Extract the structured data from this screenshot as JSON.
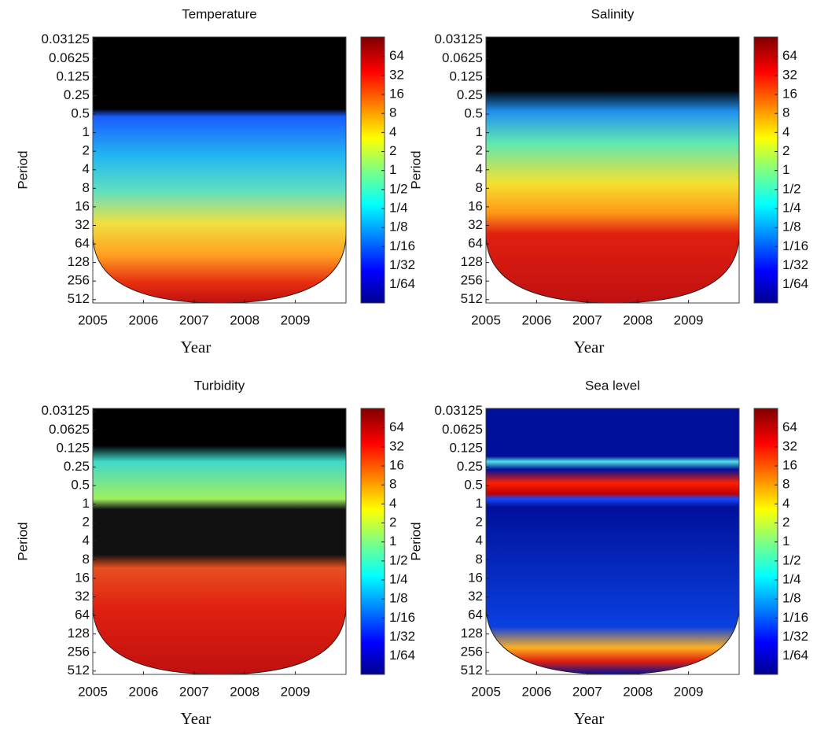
{
  "chart_data": [
    {
      "type": "heatmap",
      "title": "Temperature",
      "x_label": "Year",
      "y_label": "Period",
      "xlim": [
        2005,
        2010
      ],
      "xticks": [
        2005,
        2006,
        2007,
        2008,
        2009
      ],
      "ylim": [
        580,
        0.028
      ],
      "y_scale": "log2",
      "yticks": [
        0.03125,
        0.0625,
        0.125,
        0.25,
        0.5,
        1,
        2,
        4,
        8,
        16,
        32,
        64,
        128,
        256,
        512
      ],
      "colorbar": {
        "colormap": "jet",
        "scale": "log2",
        "lim": [
          0.008,
          130
        ],
        "ticks": [
          64,
          32,
          16,
          8,
          4,
          2,
          1,
          {
            "value": 0.5,
            "label": "1/2"
          },
          {
            "value": 0.25,
            "label": "1/4"
          },
          {
            "value": 0.125,
            "label": "1/8"
          },
          {
            "value": 0.0625,
            "label": "1/16"
          },
          {
            "value": 0.03125,
            "label": "1/32"
          },
          {
            "value": 0.015625,
            "label": "1/64"
          }
        ]
      }
    },
    {
      "type": "heatmap",
      "title": "Salinity",
      "x_label": "Year",
      "y_label": "Period",
      "xlim": [
        2005,
        2010
      ],
      "xticks": [
        2005,
        2006,
        2007,
        2008,
        2009
      ],
      "ylim": [
        580,
        0.028
      ],
      "y_scale": "log2",
      "yticks": [
        0.03125,
        0.0625,
        0.125,
        0.25,
        0.5,
        1,
        2,
        4,
        8,
        16,
        32,
        64,
        128,
        256,
        512
      ],
      "colorbar": {
        "colormap": "jet",
        "scale": "log2",
        "lim": [
          0.008,
          130
        ],
        "ticks": [
          64,
          32,
          16,
          8,
          4,
          2,
          1,
          {
            "value": 0.5,
            "label": "1/2"
          },
          {
            "value": 0.25,
            "label": "1/4"
          },
          {
            "value": 0.125,
            "label": "1/8"
          },
          {
            "value": 0.0625,
            "label": "1/16"
          },
          {
            "value": 0.03125,
            "label": "1/32"
          },
          {
            "value": 0.015625,
            "label": "1/64"
          }
        ]
      }
    },
    {
      "type": "heatmap",
      "title": "Turbidity",
      "x_label": "Year",
      "y_label": "Period",
      "xlim": [
        2005,
        2010
      ],
      "xticks": [
        2005,
        2006,
        2007,
        2008,
        2009
      ],
      "ylim": [
        580,
        0.028
      ],
      "y_scale": "log2",
      "yticks": [
        0.03125,
        0.0625,
        0.125,
        0.25,
        0.5,
        1,
        2,
        4,
        8,
        16,
        32,
        64,
        128,
        256,
        512
      ],
      "colorbar": {
        "colormap": "jet",
        "scale": "log2",
        "lim": [
          0.008,
          130
        ],
        "ticks": [
          64,
          32,
          16,
          8,
          4,
          2,
          1,
          {
            "value": 0.5,
            "label": "1/2"
          },
          {
            "value": 0.25,
            "label": "1/4"
          },
          {
            "value": 0.125,
            "label": "1/8"
          },
          {
            "value": 0.0625,
            "label": "1/16"
          },
          {
            "value": 0.03125,
            "label": "1/32"
          },
          {
            "value": 0.015625,
            "label": "1/64"
          }
        ]
      }
    },
    {
      "type": "heatmap",
      "title": "Sea level",
      "x_label": "Year",
      "y_label": "Period",
      "xlim": [
        2005,
        2010
      ],
      "xticks": [
        2005,
        2006,
        2007,
        2008,
        2009
      ],
      "ylim": [
        580,
        0.028
      ],
      "y_scale": "log2",
      "yticks": [
        0.03125,
        0.0625,
        0.125,
        0.25,
        0.5,
        1,
        2,
        4,
        8,
        16,
        32,
        64,
        128,
        256,
        512
      ],
      "colorbar": {
        "colormap": "jet",
        "scale": "log2",
        "lim": [
          0.008,
          130
        ],
        "ticks": [
          64,
          32,
          16,
          8,
          4,
          2,
          1,
          {
            "value": 0.5,
            "label": "1/2"
          },
          {
            "value": 0.25,
            "label": "1/4"
          },
          {
            "value": 0.125,
            "label": "1/8"
          },
          {
            "value": 0.0625,
            "label": "1/16"
          },
          {
            "value": 0.03125,
            "label": "1/32"
          },
          {
            "value": 0.015625,
            "label": "1/64"
          }
        ]
      }
    }
  ]
}
